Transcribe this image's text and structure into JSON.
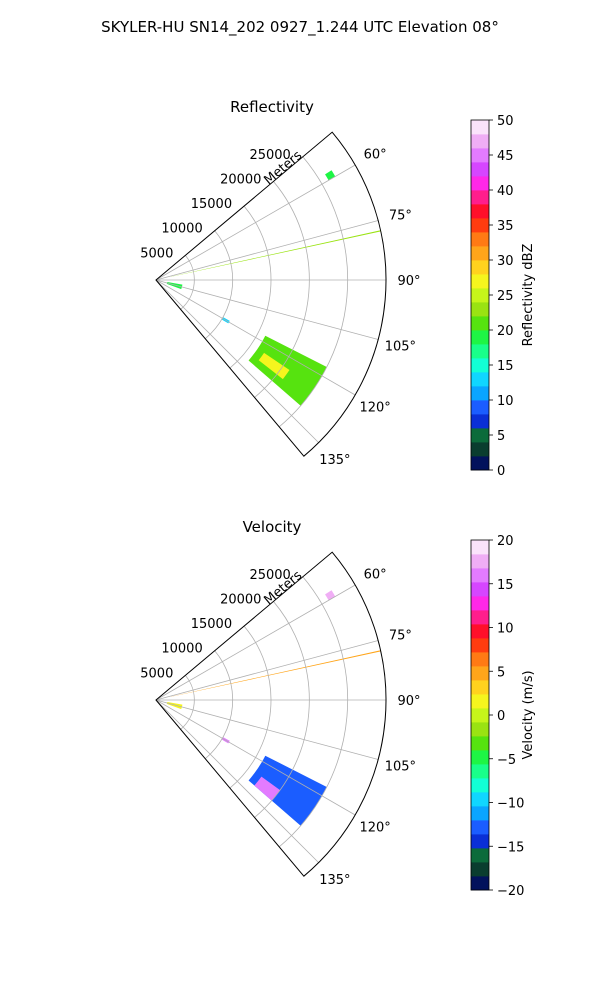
{
  "figure": {
    "suptitle": "SKYLER-HU  SN14_202  0927_1.244 UTC Elevation 08°"
  },
  "chart_data": [
    {
      "type": "heatmap",
      "title": "Reflectivity",
      "radial_label": "Meters",
      "range_ticks": [
        "5000",
        "10000",
        "15000",
        "20000",
        "25000"
      ],
      "range_values": [
        5000,
        10000,
        15000,
        20000,
        25000
      ],
      "range_max": 30000,
      "azimuth_range_deg": [
        50,
        140
      ],
      "azimuth_ticks": [
        "60°",
        "75°",
        "90°",
        "105°",
        "120°",
        "135°"
      ],
      "azimuth_values": [
        60,
        75,
        90,
        105,
        120,
        135
      ],
      "colorbar": {
        "label": "Reflectivity dBZ",
        "range": [
          0,
          50
        ],
        "ticks": [
          "0",
          "5",
          "10",
          "15",
          "20",
          "25",
          "30",
          "35",
          "40",
          "45",
          "50"
        ],
        "tick_values": [
          0,
          5,
          10,
          15,
          20,
          25,
          30,
          35,
          40,
          45,
          50
        ],
        "colors": [
          "#02125c",
          "#0a3d2f",
          "#0c6b3b",
          "#0a2fd6",
          "#1b5dff",
          "#0aa5ff",
          "#10d6ff",
          "#12ffd5",
          "#19ff8a",
          "#1ef545",
          "#56e30f",
          "#9ae312",
          "#c6f51a",
          "#f5f51e",
          "#ffd21e",
          "#ffa51a",
          "#ff7a14",
          "#ff3c0f",
          "#ff0f2a",
          "#ff1e8c",
          "#ff28e8",
          "#d646ff",
          "#e37bff",
          "#f0aef5",
          "#fbe3fb"
        ]
      },
      "echoes": [
        {
          "name": "ray-streak",
          "az": [
            77.5,
            77.8
          ],
          "r": [
            2000,
            30000
          ],
          "value": 22
        },
        {
          "name": "southeast-storm",
          "az": [
            117,
            131
          ],
          "r": [
            16000,
            25000
          ],
          "value": 21
        },
        {
          "name": "storm-core",
          "az": [
            124,
            128
          ],
          "r": [
            17000,
            21000
          ],
          "value": 26
        },
        {
          "name": "northeast-cell",
          "az": [
            58,
            60
          ],
          "r": [
            26000,
            27000
          ],
          "value": 19
        },
        {
          "name": "clutter-near-radar",
          "az": [
            100,
            110
          ],
          "r": [
            1500,
            3500
          ],
          "value": 18
        },
        {
          "name": "isolated-cell",
          "az": [
            119,
            121
          ],
          "r": [
            10000,
            11000
          ],
          "value": 13
        }
      ]
    },
    {
      "type": "heatmap",
      "title": "Velocity",
      "radial_label": "Meters",
      "range_ticks": [
        "5000",
        "10000",
        "15000",
        "20000",
        "25000"
      ],
      "range_values": [
        5000,
        10000,
        15000,
        20000,
        25000
      ],
      "range_max": 30000,
      "azimuth_range_deg": [
        50,
        140
      ],
      "azimuth_ticks": [
        "60°",
        "75°",
        "90°",
        "105°",
        "120°",
        "135°"
      ],
      "azimuth_values": [
        60,
        75,
        90,
        105,
        120,
        135
      ],
      "colorbar": {
        "label": "Velocity (m/s)",
        "range": [
          -20,
          20
        ],
        "ticks": [
          "−20",
          "−15",
          "−10",
          "−5",
          "0",
          "5",
          "10",
          "15",
          "20"
        ],
        "tick_values": [
          -20,
          -15,
          -10,
          -5,
          0,
          5,
          10,
          15,
          20
        ],
        "colors": [
          "#02125c",
          "#0a3d2f",
          "#0c6b3b",
          "#0a2fd6",
          "#1b5dff",
          "#0aa5ff",
          "#10d6ff",
          "#12ffd5",
          "#19ff8a",
          "#1ef545",
          "#56e30f",
          "#9ae312",
          "#c6f51a",
          "#f5f51e",
          "#ffd21e",
          "#ffa51a",
          "#ff7a14",
          "#ff3c0f",
          "#ff0f2a",
          "#ff1e8c",
          "#ff28e8",
          "#d646ff",
          "#e37bff",
          "#f0aef5",
          "#fbe3fb"
        ]
      },
      "echoes": [
        {
          "name": "ray-streak",
          "az": [
            77.5,
            77.8
          ],
          "r": [
            2000,
            30000
          ],
          "value": 4
        },
        {
          "name": "southeast-storm",
          "az": [
            117,
            131
          ],
          "r": [
            16000,
            25000
          ],
          "value": -13
        },
        {
          "name": "storm-inbound-edge",
          "az": [
            126,
            131
          ],
          "r": [
            17000,
            20000
          ],
          "value": 16
        },
        {
          "name": "northeast-cell",
          "az": [
            58,
            60
          ],
          "r": [
            26000,
            27000
          ],
          "value": 17
        },
        {
          "name": "clutter-near-radar",
          "az": [
            100,
            110
          ],
          "r": [
            1500,
            3500
          ],
          "value": 2
        },
        {
          "name": "isolated-cell",
          "az": [
            119,
            121
          ],
          "r": [
            10000,
            11000
          ],
          "value": 16
        }
      ]
    }
  ]
}
